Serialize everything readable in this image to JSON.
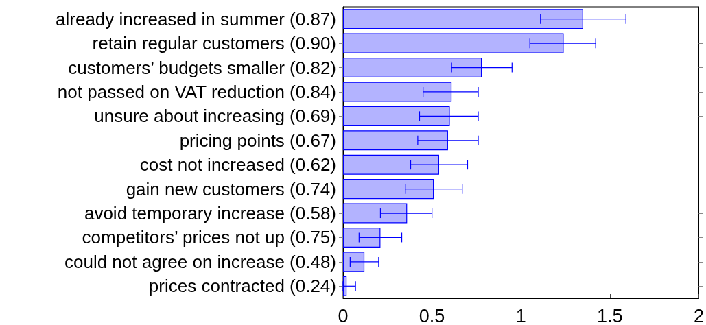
{
  "chart_data": {
    "type": "bar",
    "orientation": "horizontal",
    "categories": [
      "already increased in summer (0.87)",
      "retain regular customers (0.90)",
      "customers’ budgets smaller (0.82)",
      "not passed on VAT reduction (0.84)",
      "unsure about increasing (0.69)",
      "pricing points (0.67)",
      "cost not increased (0.62)",
      "gain new customers (0.74)",
      "avoid temporary increase (0.58)",
      "competitors’ prices not up (0.75)",
      "could not agree on increase (0.48)",
      "prices contracted (0.24)"
    ],
    "values": [
      1.35,
      1.24,
      0.78,
      0.61,
      0.6,
      0.59,
      0.54,
      0.51,
      0.36,
      0.21,
      0.12,
      0.02
    ],
    "errors": [
      [
        1.11,
        1.59
      ],
      [
        1.05,
        1.42
      ],
      [
        0.61,
        0.95
      ],
      [
        0.45,
        0.76
      ],
      [
        0.43,
        0.76
      ],
      [
        0.42,
        0.76
      ],
      [
        0.38,
        0.7
      ],
      [
        0.35,
        0.67
      ],
      [
        0.21,
        0.5
      ],
      [
        0.09,
        0.33
      ],
      [
        0.04,
        0.2
      ],
      [
        0,
        0.07
      ]
    ],
    "color": "#b3b3ff",
    "xlim": [
      0,
      2
    ],
    "xticks": [
      0,
      0.5,
      1,
      1.5,
      2
    ],
    "grid": false
  }
}
